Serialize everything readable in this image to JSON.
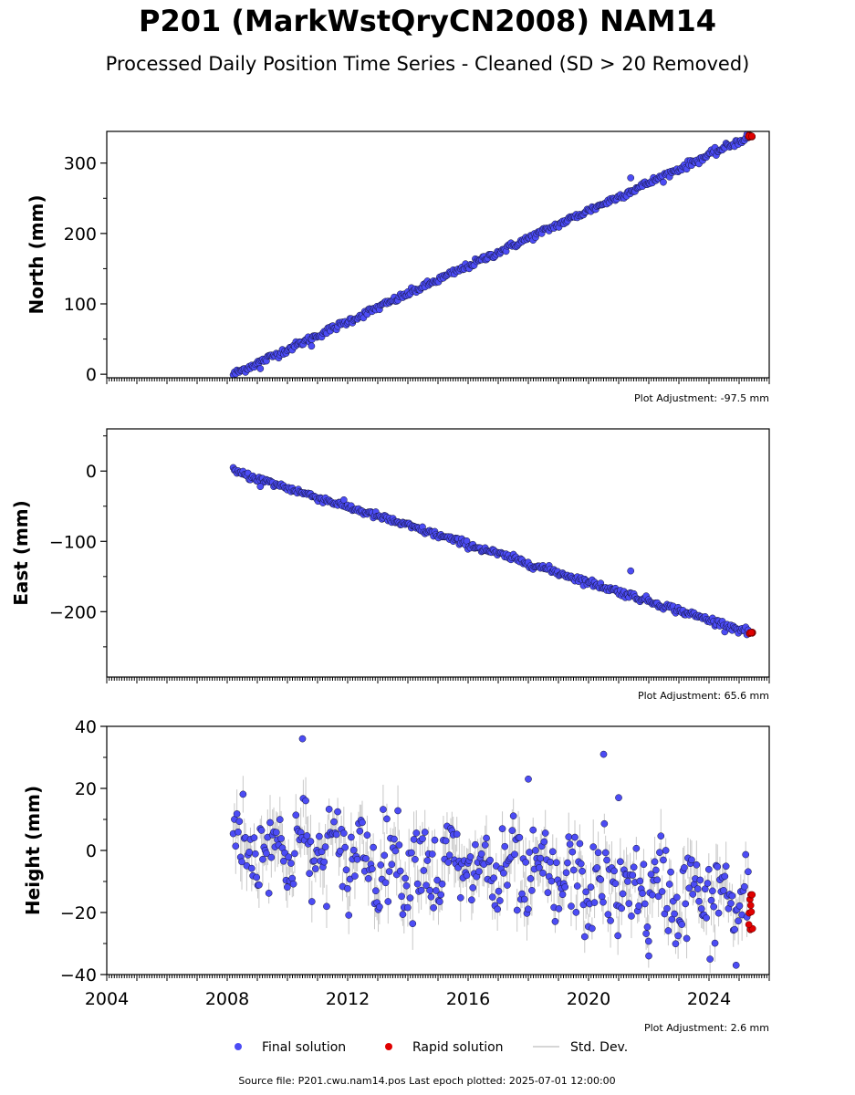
{
  "title": "P201 (MarkWstQryCN2008) NAM14",
  "subtitle": "Processed Daily Position Time Series - Cleaned (SD > 20 Removed)",
  "source_text": "Source file: P201.cwu.nam14.pos  Last epoch plotted: 2025-07-01 12:00:00",
  "legend": {
    "final": "Final solution",
    "rapid": "Rapid solution",
    "std": "Std. Dev."
  },
  "colors": {
    "final": "#4c4cf5",
    "rapid": "#e00000",
    "std": "#c8c8c8",
    "edge": "#111133"
  },
  "chart_data": [
    {
      "type": "scatter",
      "ylabel": "North (mm)",
      "xlim": [
        2004,
        2026
      ],
      "ylim": [
        -5,
        345
      ],
      "yticks": [
        0,
        100,
        200,
        300
      ],
      "ytick_labels": [
        "0",
        "100",
        "200",
        "300"
      ],
      "adjustment": "Plot Adjustment: -97.5 mm",
      "x_tick_labels_shown": false,
      "final_series": {
        "start": [
          2008.2,
          0
        ],
        "end": [
          2025.3,
          337
        ],
        "noise": 2.5
      },
      "rapid_series": {
        "x_range": [
          2025.3,
          2025.45
        ],
        "y_value": 338
      },
      "outliers": [
        {
          "x": 2021.4,
          "y": 279
        },
        {
          "x": 2010.8,
          "y": 40
        },
        {
          "x": 2009.1,
          "y": 8
        }
      ]
    },
    {
      "type": "scatter",
      "ylabel": "East (mm)",
      "xlim": [
        2004,
        2026
      ],
      "ylim": [
        -293,
        60
      ],
      "yticks": [
        0,
        -100,
        -200
      ],
      "ytick_labels": [
        "0",
        "−100",
        "−200"
      ],
      "adjustment": "Plot Adjustment: 65.6 mm",
      "x_tick_labels_shown": false,
      "final_series": {
        "start": [
          2008.2,
          0
        ],
        "end": [
          2025.3,
          -229
        ],
        "noise": 2.5
      },
      "rapid_series": {
        "x_range": [
          2025.3,
          2025.45
        ],
        "y_value": -230
      },
      "outliers": [
        {
          "x": 2021.4,
          "y": -142
        },
        {
          "x": 2009.1,
          "y": -22
        }
      ]
    },
    {
      "type": "scatter",
      "ylabel": "Height (mm)",
      "xlim": [
        2004,
        2026
      ],
      "ylim": [
        -40,
        40
      ],
      "yticks": [
        40,
        20,
        0,
        -20,
        -40
      ],
      "ytick_labels": [
        "40",
        "20",
        "0",
        "−20",
        "−40"
      ],
      "adjustment": "Plot Adjustment: 2.6 mm",
      "x_tick_labels_shown": true,
      "xticks": [
        2004,
        2008,
        2012,
        2016,
        2020,
        2024
      ],
      "final_series": {
        "start": [
          2008.2,
          3
        ],
        "end": [
          2025.3,
          -17
        ],
        "noise": 7,
        "seasonal_amplitude": 5
      },
      "rapid_series": {
        "x_range": [
          2025.3,
          2025.45
        ],
        "y_range": [
          -27,
          -13
        ]
      },
      "outliers": [
        {
          "x": 2010.5,
          "y": 36
        },
        {
          "x": 2018.0,
          "y": 23
        },
        {
          "x": 2020.5,
          "y": 31
        },
        {
          "x": 2021.0,
          "y": 17
        },
        {
          "x": 2022.0,
          "y": -34
        },
        {
          "x": 2024.9,
          "y": -37
        }
      ]
    }
  ]
}
